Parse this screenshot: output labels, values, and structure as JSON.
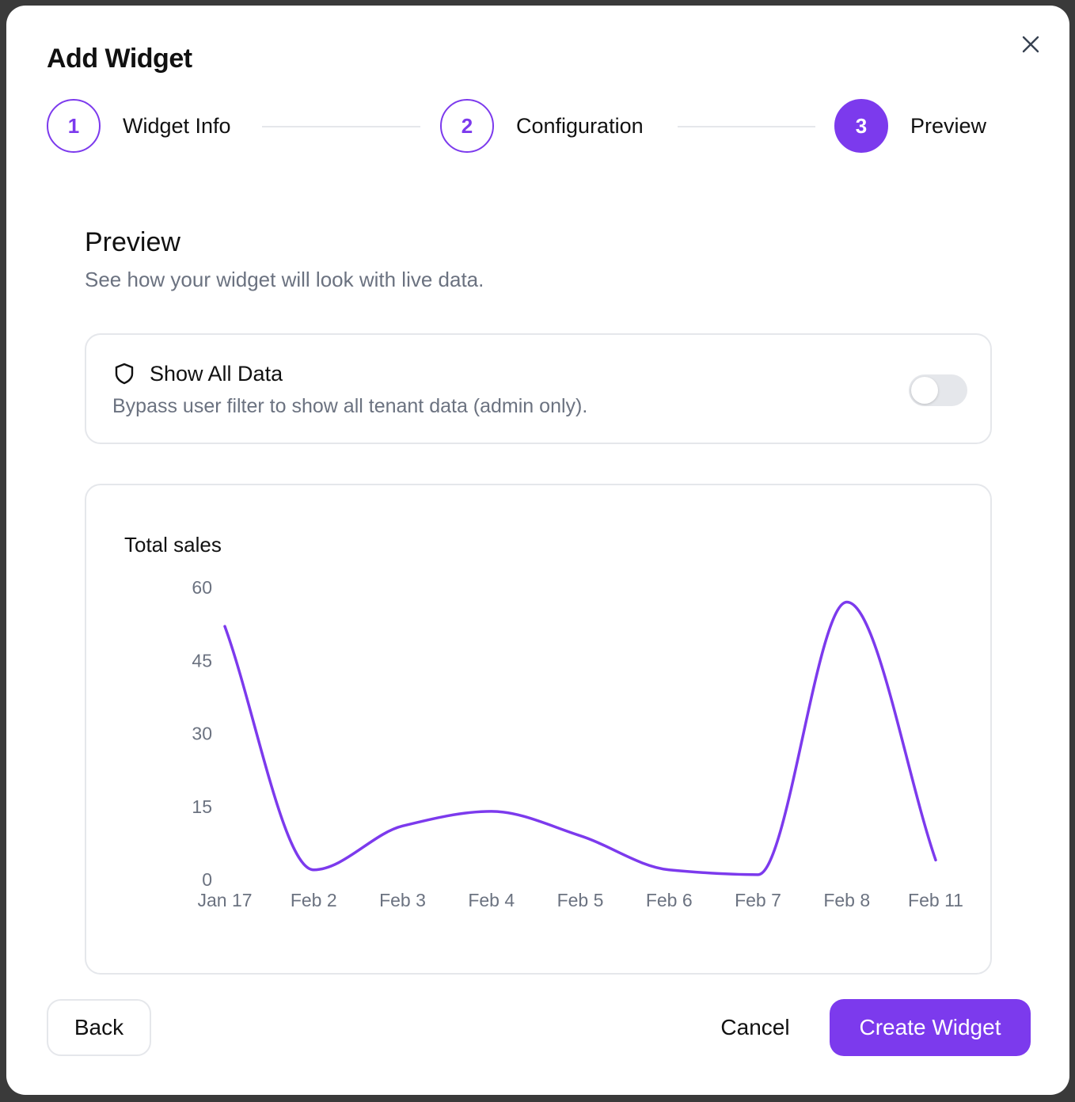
{
  "dialog": {
    "title": "Add Widget"
  },
  "stepper": {
    "steps": [
      {
        "number": "1",
        "label": "Widget Info",
        "state": "completed"
      },
      {
        "number": "2",
        "label": "Configuration",
        "state": "completed"
      },
      {
        "number": "3",
        "label": "Preview",
        "state": "active"
      }
    ]
  },
  "preview": {
    "title": "Preview",
    "subtitle": "See how your widget will look with live data."
  },
  "show_all_data": {
    "title": "Show All Data",
    "description": "Bypass user filter to show all tenant data (admin only).",
    "enabled": false
  },
  "icons": {
    "close": "close-icon",
    "shield": "shield-icon"
  },
  "colors": {
    "accent": "#7c3aed",
    "muted_text": "#6b7280",
    "border": "#e5e7eb"
  },
  "chart_data": {
    "type": "line",
    "title": "Total sales",
    "xlabel": "",
    "ylabel": "",
    "categories": [
      "Jan 17",
      "Feb 2",
      "Feb 3",
      "Feb 4",
      "Feb 5",
      "Feb 6",
      "Feb 7",
      "Feb 8",
      "Feb 11"
    ],
    "series": [
      {
        "values": [
          52,
          2,
          11,
          14,
          9,
          2,
          1,
          57,
          4
        ]
      }
    ],
    "yticks": [
      0,
      15,
      30,
      45,
      60
    ],
    "ylim": [
      0,
      60
    ],
    "grid": false,
    "smooth": true
  },
  "footer": {
    "back_label": "Back",
    "cancel_label": "Cancel",
    "create_label": "Create Widget"
  }
}
